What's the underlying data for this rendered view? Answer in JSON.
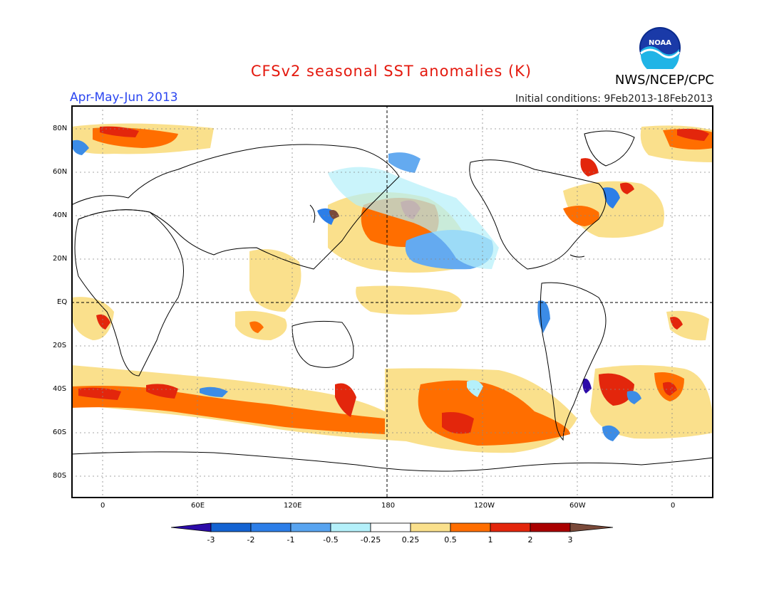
{
  "header": {
    "title": "CFSv2 seasonal SST anomalies (K)",
    "period": "Apr-May-Jun 2013",
    "initial_conditions": "Initial conditions: 9Feb2013-18Feb2013",
    "agency": "NWS/NCEP/CPC",
    "logo_text": "NOAA"
  },
  "map": {
    "lat_labels": [
      "80N",
      "60N",
      "40N",
      "20N",
      "EQ",
      "20S",
      "40S",
      "60S",
      "80S"
    ],
    "lon_labels": [
      "0",
      "60E",
      "120E",
      "180",
      "120W",
      "60W",
      "0"
    ],
    "colors": {
      "neg3": "#2c0ba8",
      "neg2": "#1463d2",
      "neg1": "#3c8ce6",
      "neg05": "#64aaf0",
      "neg025": "#b4f0fa",
      "zero": "#ffffff",
      "pos025": "#fae08c",
      "pos05": "#ff6e00",
      "pos1": "#e3260c",
      "pos2": "#aa0000",
      "pos3": "#7a4a3a"
    }
  },
  "colorbar": {
    "labels": [
      "-3",
      "-2",
      "-1",
      "-0.5",
      "-0.25",
      "0.25",
      "0.5",
      "1",
      "2",
      "3"
    ],
    "colors": [
      "#2c0ba8",
      "#1463d2",
      "#2c7ee8",
      "#58a4f0",
      "#b4f0fa",
      "#ffffff",
      "#fae08c",
      "#ff6e00",
      "#e3260c",
      "#aa0000",
      "#7a4a3a"
    ]
  }
}
